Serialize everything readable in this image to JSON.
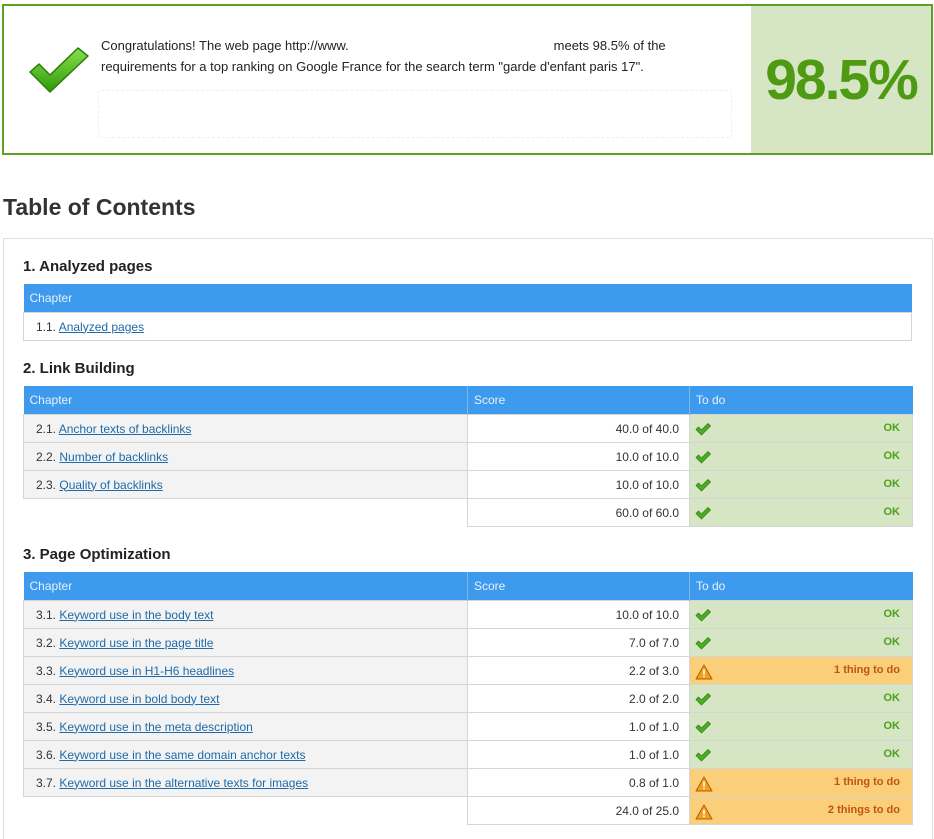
{
  "banner": {
    "message_part1": "Congratulations! The web page http://www.",
    "message_part2": "meets 98.5% of the requirements for a top ranking on Google France for the search term \"garde d'enfant paris 17\".",
    "score": "98.5%"
  },
  "toc_title": "Table of Contents",
  "colors": {
    "accent_blue": "#3e9aed",
    "ok_green": "#4ea01c",
    "ok_bg": "#d6e6c4",
    "warn_bg": "#fbcf79",
    "warn_text": "#c0560a"
  },
  "sections": [
    {
      "title": "1. Analyzed pages",
      "headers": {
        "chapter": "Chapter"
      },
      "rows": [
        {
          "num": "1.1.",
          "label": "Analyzed pages"
        }
      ]
    },
    {
      "title": "2. Link Building",
      "headers": {
        "chapter": "Chapter",
        "score": "Score",
        "todo": "To do"
      },
      "rows": [
        {
          "num": "2.1.",
          "label": "Anchor texts of backlinks",
          "score": "40.0 of 40.0",
          "status": "OK",
          "icon": "check-icon"
        },
        {
          "num": "2.2.",
          "label": "Number of backlinks",
          "score": "10.0 of 10.0",
          "status": "OK",
          "icon": "check-icon"
        },
        {
          "num": "2.3.",
          "label": "Quality of backlinks",
          "score": "10.0 of 10.0",
          "status": "OK",
          "icon": "check-icon"
        }
      ],
      "total": {
        "score": "60.0 of 60.0",
        "status": "OK",
        "icon": "check-icon"
      }
    },
    {
      "title": "3. Page Optimization",
      "headers": {
        "chapter": "Chapter",
        "score": "Score",
        "todo": "To do"
      },
      "rows": [
        {
          "num": "3.1.",
          "label": "Keyword use in the body text",
          "score": "10.0 of 10.0",
          "status": "OK",
          "icon": "check-icon"
        },
        {
          "num": "3.2.",
          "label": "Keyword use in the page title",
          "score": "7.0 of 7.0",
          "status": "OK",
          "icon": "check-icon"
        },
        {
          "num": "3.3.",
          "label": "Keyword use in H1-H6 headlines",
          "score": "2.2 of 3.0",
          "status": "1 thing to do",
          "icon": "warning-icon"
        },
        {
          "num": "3.4.",
          "label": "Keyword use in bold body text",
          "score": "2.0 of 2.0",
          "status": "OK",
          "icon": "check-icon"
        },
        {
          "num": "3.5.",
          "label": "Keyword use in the meta description",
          "score": "1.0 of 1.0",
          "status": "OK",
          "icon": "check-icon"
        },
        {
          "num": "3.6.",
          "label": "Keyword use in the same domain anchor texts",
          "score": "1.0 of 1.0",
          "status": "OK",
          "icon": "check-icon"
        },
        {
          "num": "3.7.",
          "label": "Keyword use in the alternative texts for images",
          "score": "0.8 of 1.0",
          "status": "1 thing to do",
          "icon": "warning-icon"
        }
      ],
      "total": {
        "score": "24.0 of 25.0",
        "status": "2 things to do",
        "icon": "warning-icon"
      }
    }
  ]
}
